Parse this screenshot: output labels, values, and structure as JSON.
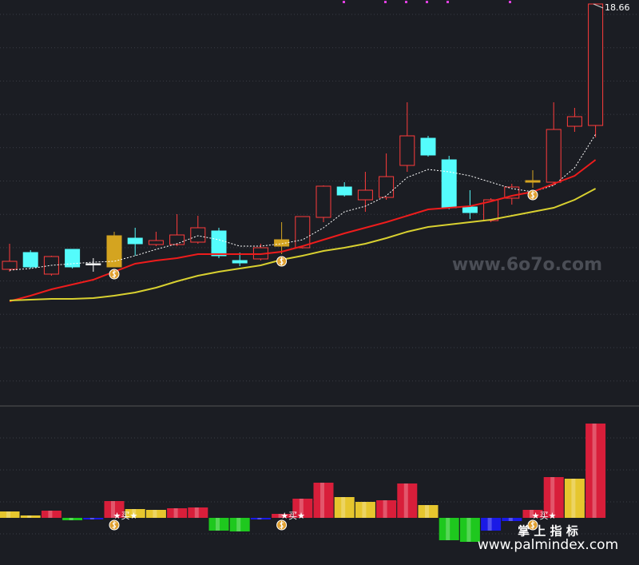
{
  "chart_data": [
    {
      "type": "candlestick",
      "ylim": [
        8.66,
        18.76
      ],
      "grid": true,
      "up_color": "#ff3b3b",
      "open": [
        12.02,
        12.44,
        11.9,
        12.52,
        12.16,
        12.08,
        12.8,
        12.64,
        12.64,
        12.7,
        12.98,
        12.24,
        12.28,
        12.6,
        12.56,
        13.32,
        14.08,
        13.76,
        13.82,
        14.62,
        15.3,
        14.76,
        13.58,
        13.24,
        13.8,
        14.2,
        14.2,
        15.6,
        15.62
      ],
      "high": [
        12.66,
        12.5,
        12.36,
        12.52,
        12.3,
        12.96,
        13.06,
        12.96,
        13.4,
        13.36,
        13.06,
        12.44,
        12.66,
        13.2,
        13.34,
        14.12,
        14.2,
        14.46,
        14.92,
        16.2,
        15.36,
        14.86,
        14.0,
        13.8,
        14.16,
        14.5,
        16.2,
        16.06,
        18.66
      ],
      "low": [
        11.96,
        12.04,
        11.86,
        12.04,
        11.96,
        12.08,
        12.36,
        12.6,
        12.6,
        12.66,
        12.3,
        12.1,
        12.24,
        12.4,
        12.54,
        13.2,
        13.84,
        13.46,
        13.76,
        14.46,
        14.84,
        13.52,
        13.28,
        13.2,
        13.64,
        14.06,
        14.12,
        15.46,
        15.32
      ],
      "close": [
        12.22,
        12.08,
        12.34,
        12.08,
        12.16,
        12.86,
        12.66,
        12.74,
        12.88,
        13.06,
        12.36,
        12.18,
        12.56,
        12.76,
        13.34,
        14.1,
        13.88,
        14.0,
        14.34,
        15.36,
        14.88,
        13.56,
        13.44,
        13.76,
        14.08,
        14.24,
        15.52,
        15.84,
        18.66
      ],
      "colors": [
        "#ff3b3b",
        "#54fcfc",
        "#ff3b3b",
        "#54fcfc",
        "#ffffff",
        "#d4a420",
        "#54fcfc",
        "#ff3b3b",
        "#ff3b3b",
        "#ff3b3b",
        "#54fcfc",
        "#54fcfc",
        "#ff3b3b",
        "#d4a420",
        "#ff3b3b",
        "#ff3b3b",
        "#54fcfc",
        "#ff3b3b",
        "#ff3b3b",
        "#ff3b3b",
        "#54fcfc",
        "#54fcfc",
        "#54fcfc",
        "#ff3b3b",
        "#ff3b3b",
        "#d4a420",
        "#ff3b3b",
        "#ff3b3b",
        "#ff3b3b"
      ],
      "lines": [
        {
          "color": "#ffffff",
          "style": "dotted",
          "values": [
            12.0,
            12.04,
            12.12,
            12.16,
            12.2,
            12.22,
            12.36,
            12.52,
            12.66,
            12.86,
            12.76,
            12.6,
            12.6,
            12.66,
            12.76,
            13.06,
            13.46,
            13.6,
            13.86,
            14.32,
            14.52,
            14.46,
            14.36,
            14.2,
            14.04,
            13.96,
            14.12,
            14.56,
            15.4
          ]
        },
        {
          "color": "#ee1c1c",
          "style": "solid",
          "values": [
            11.22,
            11.36,
            11.52,
            11.64,
            11.76,
            11.96,
            12.16,
            12.24,
            12.3,
            12.4,
            12.4,
            12.4,
            12.4,
            12.46,
            12.6,
            12.76,
            12.92,
            13.06,
            13.2,
            13.36,
            13.52,
            13.56,
            13.6,
            13.72,
            13.86,
            13.96,
            14.16,
            14.36,
            14.76
          ]
        },
        {
          "color": "#d8d030",
          "style": "solid",
          "values": [
            11.24,
            11.26,
            11.28,
            11.28,
            11.3,
            11.36,
            11.44,
            11.56,
            11.72,
            11.86,
            11.96,
            12.04,
            12.12,
            12.26,
            12.36,
            12.48,
            12.56,
            12.66,
            12.8,
            12.96,
            13.08,
            13.14,
            13.2,
            13.26,
            13.36,
            13.46,
            13.56,
            13.76,
            14.04
          ]
        }
      ],
      "watermark": "www.6o7o.com"
    },
    {
      "type": "bar",
      "ylim": [
        -59,
        140
      ],
      "grid": true,
      "values": [
        8,
        3,
        9,
        -3,
        -2,
        21,
        11,
        10,
        12,
        13,
        -16,
        -17,
        -2,
        5,
        24,
        44,
        26,
        20,
        22,
        43,
        16,
        -28,
        -30,
        -16,
        -4,
        10,
        51,
        49,
        118
      ],
      "colors": [
        "#e6c62e",
        "#e6c62e",
        "#d81e3a",
        "#1ec81e",
        "#1a1ae6",
        "#d81e3a",
        "#e6c62e",
        "#e6c62e",
        "#d81e3a",
        "#d81e3a",
        "#1ec81e",
        "#1ec81e",
        "#1a1ae6",
        "#d81e3a",
        "#d81e3a",
        "#d81e3a",
        "#e6c62e",
        "#e6c62e",
        "#d81e3a",
        "#d81e3a",
        "#e6c62e",
        "#1ec81e",
        "#1ec81e",
        "#1a1ae6",
        "#1a1ae6",
        "#d81e3a",
        "#d81e3a",
        "#e6c62e",
        "#d81e3a"
      ],
      "signals": [
        null,
        null,
        null,
        null,
        null,
        "★买★",
        null,
        null,
        null,
        null,
        null,
        null,
        null,
        "★买★",
        null,
        null,
        null,
        null,
        null,
        null,
        null,
        null,
        null,
        null,
        null,
        "★买★",
        null,
        null,
        null
      ],
      "watermark": [
        "掌 上 指 标",
        "www.palmindex.com"
      ]
    }
  ]
}
